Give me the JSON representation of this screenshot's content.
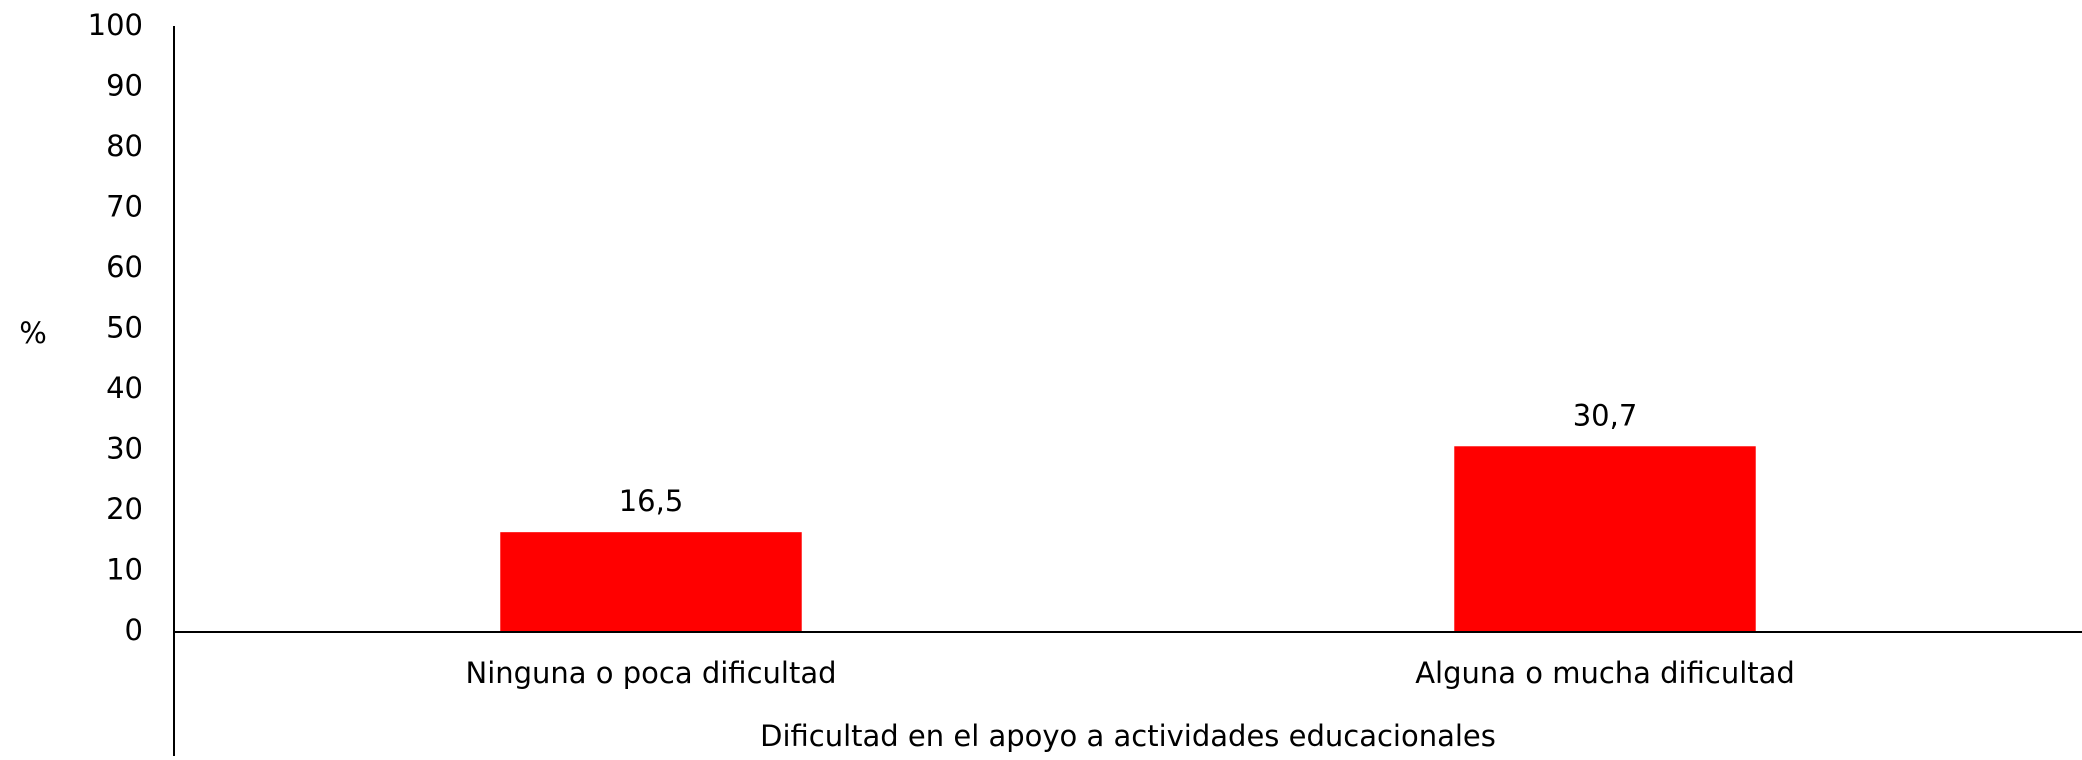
{
  "chart_data": {
    "type": "bar",
    "y_label": "%",
    "x_label": "Dificultad en el apoyo a actividades educacionales",
    "categories": [
      "Ninguna o poca dificultad",
      "Alguna o mucha dificultad"
    ],
    "values": [
      16.5,
      30.7
    ],
    "value_labels": [
      "16,5",
      "30,7"
    ],
    "color": "#ff0000",
    "ylim": [
      0,
      100
    ],
    "yticks": [
      0,
      10,
      20,
      30,
      40,
      50,
      60,
      70,
      80,
      90,
      100
    ],
    "grid": false
  }
}
